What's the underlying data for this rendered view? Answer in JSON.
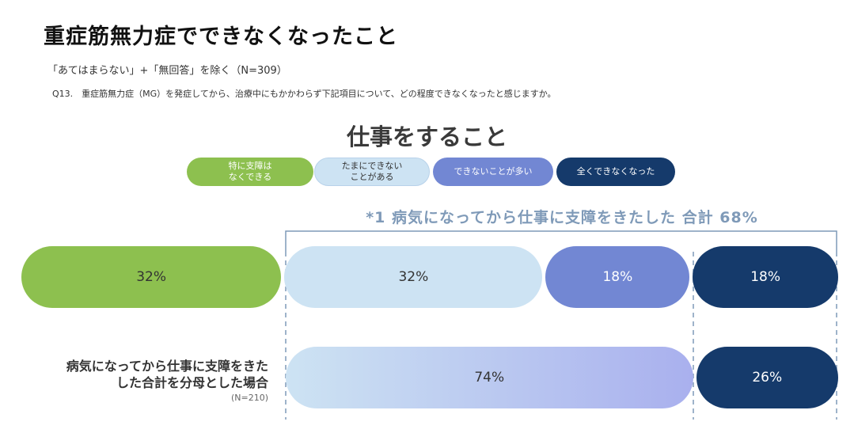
{
  "header": {
    "title": "重症筋無力症でできなくなったこと",
    "note": "「あてはまらない」+「無回答」を除く（N=309）",
    "question": "Q13.　重症筋無力症（MG）を発症してから、治療中にもかかわらず下記項目について、どの程度できなくなったと感じますか。"
  },
  "chart_data": {
    "type": "bar",
    "title": "仕事をすること",
    "legend": [
      {
        "label": "特に支障は\nなくできる",
        "color": "#8dc04f",
        "text_color": "#ffffff"
      },
      {
        "label": "たまにできない\nことがある",
        "color": "#cde3f3",
        "text_color": "#333333"
      },
      {
        "label": "できないことが多い",
        "color": "#7287d3",
        "text_color": "#ffffff"
      },
      {
        "label": "全くできなくなった",
        "color": "#153a6b",
        "text_color": "#ffffff"
      }
    ],
    "bracket_label": "*1 病気になってから仕事に支障をきたした 合計 68%",
    "rows": [
      {
        "label": "",
        "sublabel": "",
        "segments": [
          {
            "category": "特に支障は なくできる",
            "value": 32,
            "label": "32%",
            "color": "#8dc04f",
            "text_color": "#333333"
          },
          {
            "category": "たまにできない ことがある",
            "value": 32,
            "label": "32%",
            "color": "#cde3f3",
            "text_color": "#333333"
          },
          {
            "category": "できないことが多い",
            "value": 18,
            "label": "18%",
            "color": "#7287d3",
            "text_color": "#ffffff"
          },
          {
            "category": "全くできなくなった",
            "value": 18,
            "label": "18%",
            "color": "#153a6b",
            "text_color": "#ffffff"
          }
        ]
      },
      {
        "label": "病気になってから仕事に支障をきた\nした合計を分母とした場合",
        "sublabel": "(N=210)",
        "segments": [
          {
            "category": "たまにできない＋できないことが多い",
            "value": 74,
            "label": "74%",
            "gradient": [
              "#cde3f3",
              "#a9b0ee"
            ],
            "text_color": "#333333"
          },
          {
            "category": "全くできなくなった",
            "value": 26,
            "label": "26%",
            "color": "#153a6b",
            "text_color": "#ffffff"
          }
        ]
      }
    ]
  }
}
